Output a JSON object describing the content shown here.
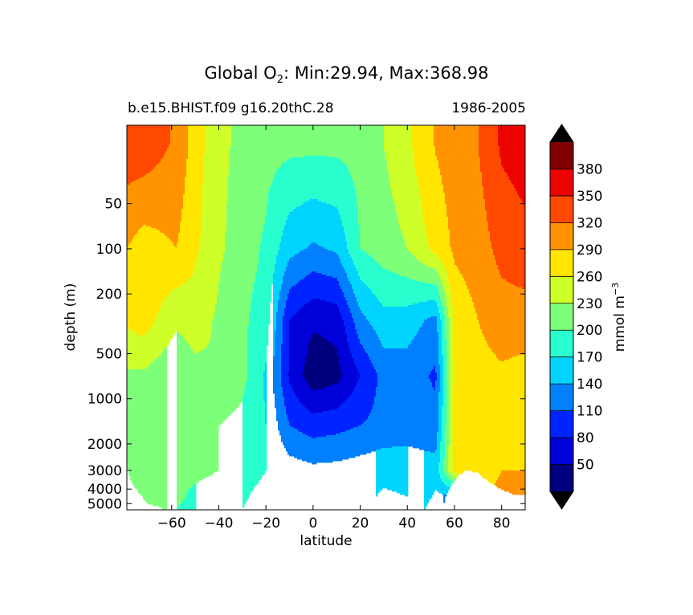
{
  "title": {
    "main": "Global O",
    "subscript": "2",
    "stats": ": Min:29.94, Max:368.98"
  },
  "subtitle_left": "b.e15.BHIST.f09 g16.20thC.28",
  "subtitle_right": "1986-2005",
  "colorbar": {
    "label": "mmol m",
    "label_exponent": "−3",
    "levels": [
      20,
      50,
      80,
      110,
      140,
      170,
      200,
      230,
      260,
      290,
      320,
      350,
      380,
      410
    ],
    "tick_labels": [
      "50",
      "80",
      "110",
      "140",
      "170",
      "200",
      "230",
      "260",
      "290",
      "320",
      "350",
      "380"
    ],
    "colors": [
      "#00007f",
      "#0000d9",
      "#0024ff",
      "#0080ff",
      "#00d4ff",
      "#29ffce",
      "#7dff7a",
      "#ceff29",
      "#ffe500",
      "#ff9400",
      "#ff4800",
      "#ed0400",
      "#7f0000"
    ],
    "extend": "both",
    "under_color": "#000000",
    "over_color": "#000000"
  },
  "chart_data": {
    "type": "heatmap",
    "plot_style": "filled contour",
    "xlabel": "latitude",
    "ylabel": "depth (m)",
    "xlim": [
      -79,
      90
    ],
    "ylim_depth_m": [
      5500,
      15
    ],
    "yscale": "log",
    "y_inverted": true,
    "grid": false,
    "xticks": [
      -60,
      -40,
      -20,
      0,
      20,
      40,
      60,
      80
    ],
    "xtick_labels": [
      "−60",
      "−40",
      "−20",
      "0",
      "20",
      "40",
      "60",
      "80"
    ],
    "yticks": [
      50,
      100,
      200,
      500,
      1000,
      2000,
      3000,
      4000,
      5000
    ],
    "ytick_labels": [
      "50",
      "100",
      "200",
      "500",
      "1000",
      "2000",
      "3000",
      "4000",
      "5000"
    ],
    "value_units": "mmol m-3",
    "value_min": 29.94,
    "value_max": 368.98,
    "contour_levels": [
      20,
      50,
      80,
      110,
      140,
      170,
      200,
      230,
      260,
      290,
      320,
      350,
      380,
      410
    ],
    "field_profiles": [
      {
        "depth_m": 20,
        "lat": [
          -79,
          -72,
          -58,
          -50,
          -40,
          -30,
          -20,
          -10,
          0,
          10,
          20,
          30,
          40,
          52,
          60,
          70,
          80,
          90
        ],
        "o2": [
          340,
          340,
          315,
          275,
          240,
          220,
          210,
          208,
          208,
          208,
          210,
          230,
          255,
          292,
          305,
          320,
          355,
          365
        ]
      },
      {
        "depth_m": 100,
        "lat": [
          -79,
          -72,
          -58,
          -50,
          -40,
          -30,
          -20,
          -10,
          0,
          10,
          20,
          30,
          40,
          52,
          60,
          70,
          80,
          90
        ],
        "o2": [
          290,
          275,
          290,
          265,
          235,
          215,
          195,
          150,
          135,
          145,
          200,
          215,
          230,
          270,
          295,
          305,
          330,
          340
        ]
      },
      {
        "depth_m": 300,
        "lat": [
          -79,
          -72,
          -58,
          -50,
          -40,
          -30,
          -20,
          -10,
          0,
          10,
          20,
          30,
          40,
          52,
          60,
          70,
          80,
          90
        ],
        "o2": [
          265,
          275,
          235,
          245,
          225,
          205,
          185,
          80,
          55,
          60,
          130,
          160,
          155,
          130,
          270,
          290,
          305,
          305
        ]
      },
      {
        "depth_m": 700,
        "lat": [
          -79,
          -72,
          -58,
          -50,
          -40,
          -30,
          -20,
          -10,
          0,
          10,
          20,
          30,
          40,
          52,
          60,
          70,
          80,
          90
        ],
        "o2": [
          225,
          225,
          205,
          220,
          228,
          210,
          165,
          75,
          30,
          40,
          80,
          120,
          125,
          105,
          265,
          280,
          285,
          280
        ]
      },
      {
        "depth_m": 1500,
        "lat": [
          -79,
          -72,
          -58,
          -50,
          -40,
          -30,
          -20,
          -10,
          0,
          10,
          20,
          30,
          40,
          52,
          60,
          70,
          80,
          90
        ],
        "o2": [
          210,
          210,
          205,
          200,
          200,
          190,
          170,
          110,
          95,
          100,
          110,
          120,
          125,
          120,
          270,
          285,
          290,
          285
        ]
      },
      {
        "depth_m": 3000,
        "lat": [
          -79,
          -72,
          -58,
          -50,
          -40,
          -30,
          -20,
          -10,
          0,
          10,
          20,
          30,
          40,
          52,
          60,
          70,
          80,
          90
        ],
        "o2": [
          225,
          210,
          205,
          205,
          200,
          190,
          170,
          155,
          148,
          150,
          155,
          160,
          158,
          152,
          270,
          285,
          290,
          290
        ]
      },
      {
        "depth_m": 4500,
        "lat": [
          -79,
          -72,
          -58,
          -50,
          -40,
          -30,
          -20,
          -10,
          0,
          10,
          20,
          30,
          40,
          52,
          60,
          70,
          80,
          90
        ],
        "o2": [
          240,
          210,
          205,
          195,
          190,
          175,
          155,
          150,
          145,
          145,
          160,
          175,
          170,
          135,
          130,
          290,
          292,
          292
        ]
      },
      {
        "depth_m": 5500,
        "lat": [
          -79,
          -72,
          -58,
          -50,
          -40,
          -30,
          -20,
          -10,
          0,
          10,
          20,
          30,
          40,
          52,
          60,
          70,
          80,
          90
        ],
        "o2": [
          240,
          210,
          200,
          190,
          185,
          170,
          150,
          145,
          145,
          145,
          160,
          175,
          170,
          120,
          120,
          292,
          292,
          292
        ]
      }
    ],
    "seafloor_depth_m": {
      "lat": [
        -79,
        -77,
        -74,
        -72,
        -70,
        -66,
        -62,
        -58,
        -55,
        -50,
        -45,
        -40,
        -30,
        0,
        55,
        56,
        58,
        60,
        62,
        65,
        70,
        75,
        80,
        86,
        90
      ],
      "depth": [
        2800,
        3600,
        4200,
        4600,
        5000,
        5200,
        5500,
        5500,
        5400,
        5500,
        5500,
        5500,
        5500,
        5500,
        5500,
        4600,
        3900,
        3500,
        3200,
        3000,
        3100,
        3600,
        4000,
        4400,
        4400
      ]
    }
  }
}
